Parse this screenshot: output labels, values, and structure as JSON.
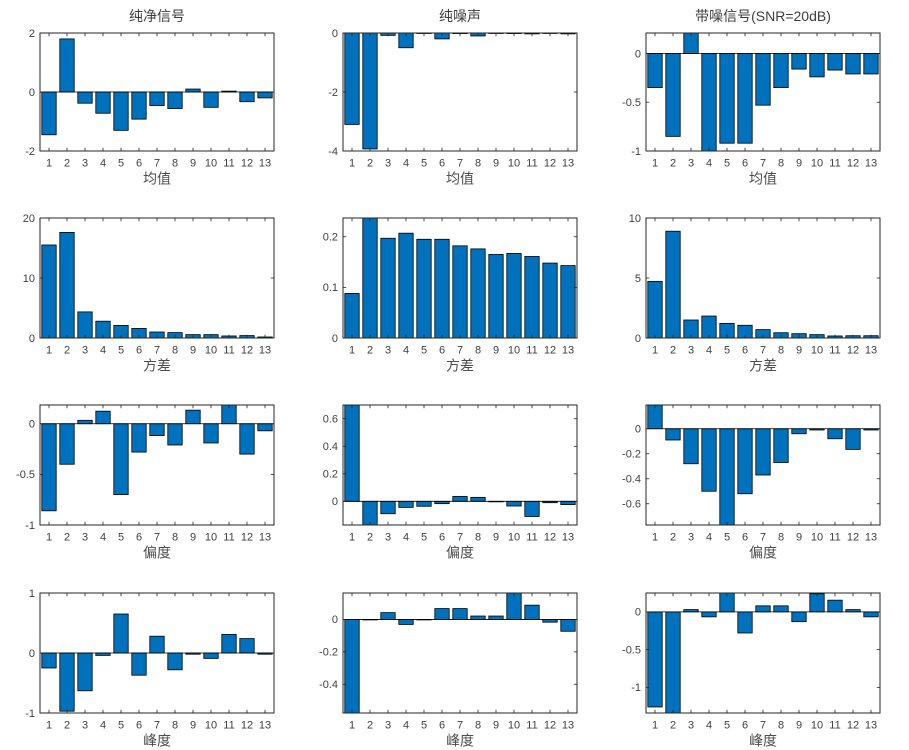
{
  "figure": {
    "background": "#ffffff",
    "bar_color": "#0072BD",
    "bar_edge_color": "#000000",
    "axis_color": "#262626",
    "tick_label_color": "#404040",
    "label_color": "#4d4d4d",
    "title_color": "#3d3d3d",
    "col_titles": [
      "纯净信号",
      "纯噪声",
      "带噪信号(SNR=20dB)"
    ],
    "row_xlabels": [
      "均值",
      "方差",
      "偏度",
      "峰度"
    ]
  },
  "chart_data": [
    {
      "type": "bar",
      "title": "纯净信号",
      "xlabel": "均值",
      "categories": [
        "1",
        "2",
        "3",
        "4",
        "5",
        "6",
        "7",
        "8",
        "9",
        "10",
        "11",
        "12",
        "13"
      ],
      "values": [
        -1.45,
        1.8,
        -0.38,
        -0.72,
        -1.3,
        -0.92,
        -0.46,
        -0.56,
        0.1,
        -0.52,
        0.03,
        -0.33,
        -0.2
      ],
      "ylim": [
        -2,
        2
      ],
      "yticks": [
        -2,
        0,
        2
      ],
      "ytick_labels": [
        "-2",
        "0",
        "2"
      ],
      "grid": false,
      "box": true,
      "tick_dir": "in"
    },
    {
      "type": "bar",
      "title": "纯噪声",
      "xlabel": "均值",
      "categories": [
        "1",
        "2",
        "3",
        "4",
        "5",
        "6",
        "7",
        "8",
        "9",
        "10",
        "11",
        "12",
        "13"
      ],
      "values": [
        -3.1,
        -3.93,
        -0.08,
        -0.5,
        -0.01,
        -0.2,
        -0.02,
        -0.1,
        -0.01,
        -0.02,
        -0.03,
        -0.01,
        -0.03
      ],
      "ylim": [
        -4,
        0
      ],
      "yticks": [
        -4,
        -2,
        0
      ],
      "ytick_labels": [
        "-4",
        "-2",
        "0"
      ],
      "grid": false,
      "box": true,
      "tick_dir": "in"
    },
    {
      "type": "bar",
      "title": "带噪信号(SNR=20dB)",
      "xlabel": "均值",
      "categories": [
        "1",
        "2",
        "3",
        "4",
        "5",
        "6",
        "7",
        "8",
        "9",
        "10",
        "11",
        "12",
        "13"
      ],
      "values": [
        -0.35,
        -0.85,
        0.21,
        -1.0,
        -0.92,
        -0.92,
        -0.53,
        -0.35,
        -0.16,
        -0.24,
        -0.17,
        -0.21,
        -0.21
      ],
      "ylim": [
        -1,
        0.21
      ],
      "yticks": [
        -1,
        -0.5,
        0
      ],
      "ytick_labels": [
        "-1",
        "-0.5",
        "0"
      ],
      "grid": false,
      "box": true,
      "tick_dir": "in"
    },
    {
      "type": "bar",
      "title": "",
      "xlabel": "方差",
      "categories": [
        "1",
        "2",
        "3",
        "4",
        "5",
        "6",
        "7",
        "8",
        "9",
        "10",
        "11",
        "12",
        "13"
      ],
      "values": [
        15.5,
        17.6,
        4.35,
        2.8,
        2.1,
        1.6,
        1.0,
        0.9,
        0.56,
        0.56,
        0.34,
        0.4,
        0.17
      ],
      "ylim": [
        0,
        20
      ],
      "yticks": [
        0,
        10,
        20
      ],
      "ytick_labels": [
        "0",
        "10",
        "20"
      ],
      "grid": false,
      "box": true,
      "tick_dir": "in"
    },
    {
      "type": "bar",
      "title": "",
      "xlabel": "方差",
      "categories": [
        "1",
        "2",
        "3",
        "4",
        "5",
        "6",
        "7",
        "8",
        "9",
        "10",
        "11",
        "12",
        "13"
      ],
      "values": [
        0.088,
        0.237,
        0.197,
        0.207,
        0.195,
        0.195,
        0.182,
        0.176,
        0.165,
        0.167,
        0.161,
        0.148,
        0.143
      ],
      "ylim": [
        0,
        0.237
      ],
      "yticks": [
        0,
        0.1,
        0.2
      ],
      "ytick_labels": [
        "0",
        "0.1",
        "0.2"
      ],
      "grid": false,
      "box": true,
      "tick_dir": "in"
    },
    {
      "type": "bar",
      "title": "",
      "xlabel": "方差",
      "categories": [
        "1",
        "2",
        "3",
        "4",
        "5",
        "6",
        "7",
        "8",
        "9",
        "10",
        "11",
        "12",
        "13"
      ],
      "values": [
        4.72,
        8.9,
        1.5,
        1.83,
        1.22,
        1.06,
        0.7,
        0.44,
        0.36,
        0.28,
        0.17,
        0.19,
        0.19
      ],
      "ylim": [
        0,
        10
      ],
      "yticks": [
        0,
        5,
        10
      ],
      "ytick_labels": [
        "0",
        "5",
        "10"
      ],
      "grid": false,
      "box": true,
      "tick_dir": "in"
    },
    {
      "type": "bar",
      "title": "",
      "xlabel": "偏度",
      "categories": [
        "1",
        "2",
        "3",
        "4",
        "5",
        "6",
        "7",
        "8",
        "9",
        "10",
        "11",
        "12",
        "13"
      ],
      "values": [
        -0.86,
        -0.4,
        0.034,
        0.124,
        -0.7,
        -0.28,
        -0.117,
        -0.21,
        0.134,
        -0.19,
        0.185,
        -0.3,
        -0.07
      ],
      "ylim": [
        -1,
        0.185
      ],
      "yticks": [
        -1,
        -0.5,
        0
      ],
      "ytick_labels": [
        "-1",
        "-0.5",
        "0"
      ],
      "grid": false,
      "box": true,
      "tick_dir": "in"
    },
    {
      "type": "bar",
      "title": "",
      "xlabel": "偏度",
      "categories": [
        "1",
        "2",
        "3",
        "4",
        "5",
        "6",
        "7",
        "8",
        "9",
        "10",
        "11",
        "12",
        "13"
      ],
      "values": [
        0.7,
        -0.172,
        -0.09,
        -0.044,
        -0.036,
        -0.017,
        0.036,
        0.029,
        0,
        -0.034,
        -0.11,
        -0.01,
        -0.024
      ],
      "ylim": [
        -0.172,
        0.7
      ],
      "yticks": [
        0,
        0.2,
        0.4,
        0.6
      ],
      "ytick_labels": [
        "0",
        "0.2",
        "0.4",
        "0.6"
      ],
      "grid": false,
      "box": true,
      "tick_dir": "in"
    },
    {
      "type": "bar",
      "title": "",
      "xlabel": "偏度",
      "categories": [
        "1",
        "2",
        "3",
        "4",
        "5",
        "6",
        "7",
        "8",
        "9",
        "10",
        "11",
        "12",
        "13"
      ],
      "values": [
        0.19,
        -0.09,
        -0.28,
        -0.5,
        -0.77,
        -0.52,
        -0.37,
        -0.27,
        -0.04,
        -0.01,
        -0.08,
        -0.165,
        -0.01
      ],
      "ylim": [
        -0.77,
        0.19
      ],
      "yticks": [
        -0.6,
        -0.4,
        -0.2,
        0
      ],
      "ytick_labels": [
        "-0.6",
        "-0.4",
        "-0.2",
        "0"
      ],
      "grid": false,
      "box": true,
      "tick_dir": "in"
    },
    {
      "type": "bar",
      "title": "",
      "xlabel": "峰度",
      "categories": [
        "1",
        "2",
        "3",
        "4",
        "5",
        "6",
        "7",
        "8",
        "9",
        "10",
        "11",
        "12",
        "13"
      ],
      "values": [
        -0.25,
        -0.97,
        -0.63,
        -0.04,
        0.65,
        -0.37,
        0.28,
        -0.28,
        -0.02,
        -0.09,
        0.31,
        0.24,
        -0.02
      ],
      "ylim": [
        -1,
        1
      ],
      "yticks": [
        -1,
        0,
        1
      ],
      "ytick_labels": [
        "-1",
        "0",
        "1"
      ],
      "grid": false,
      "box": true,
      "tick_dir": "in"
    },
    {
      "type": "bar",
      "title": "",
      "xlabel": "峰度",
      "categories": [
        "1",
        "2",
        "3",
        "4",
        "5",
        "6",
        "7",
        "8",
        "9",
        "10",
        "11",
        "12",
        "13"
      ],
      "values": [
        -0.577,
        0,
        0.042,
        -0.031,
        0,
        0.067,
        0.067,
        0.021,
        0.021,
        0.163,
        0.088,
        -0.017,
        -0.073
      ],
      "ylim": [
        -0.577,
        0.163
      ],
      "yticks": [
        -0.4,
        -0.2,
        0
      ],
      "ytick_labels": [
        "-0.4",
        "-0.2",
        "0"
      ],
      "grid": false,
      "box": true,
      "tick_dir": "in"
    },
    {
      "type": "bar",
      "title": "",
      "xlabel": "峰度",
      "categories": [
        "1",
        "2",
        "3",
        "4",
        "5",
        "6",
        "7",
        "8",
        "9",
        "10",
        "11",
        "12",
        "13"
      ],
      "values": [
        -1.26,
        -1.34,
        0.03,
        -0.066,
        0.25,
        -0.28,
        0.08,
        0.08,
        -0.13,
        0.24,
        0.155,
        0.03,
        -0.066
      ],
      "ylim": [
        -1.34,
        0.25
      ],
      "yticks": [
        -1,
        -0.5,
        0
      ],
      "ytick_labels": [
        "-1",
        "-0.5",
        "0"
      ],
      "grid": false,
      "box": true,
      "tick_dir": "in"
    }
  ]
}
